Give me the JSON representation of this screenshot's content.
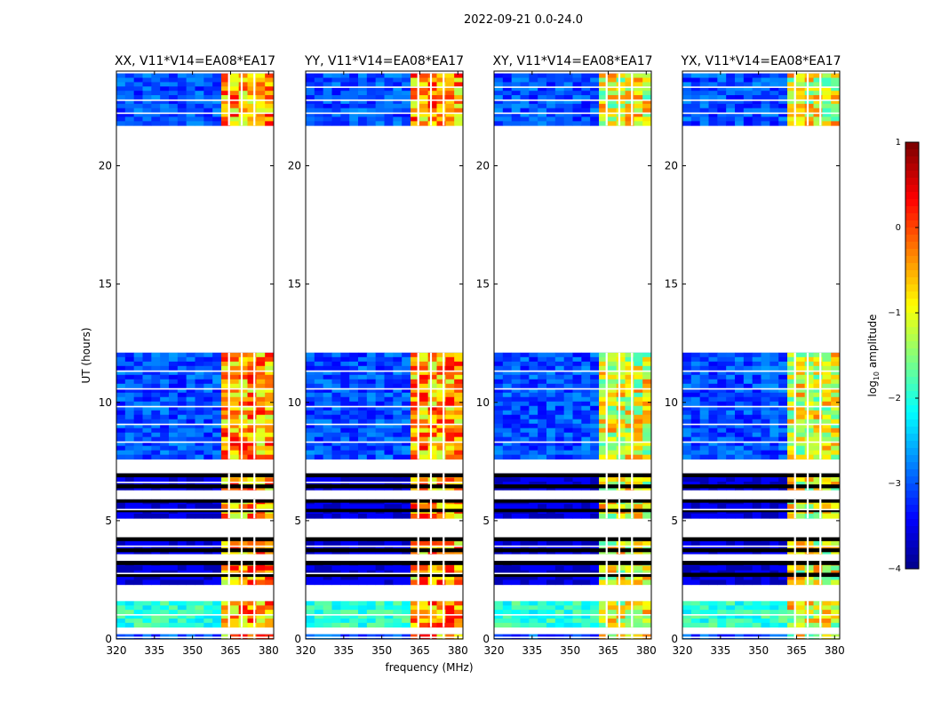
{
  "chart_data": {
    "type": "heatmap",
    "suptitle": "2022-09-21 0.0-24.0",
    "shared_xlabel": "frequency (MHz)",
    "shared_ylabel": "UT (hours)",
    "xlim": [
      320,
      382
    ],
    "ylim": [
      0,
      24
    ],
    "xticks": [
      320,
      335,
      350,
      365,
      380
    ],
    "yticks": [
      0,
      5,
      10,
      15,
      20
    ],
    "panels": [
      {
        "title": "XX, V11*V14=EA08*EA17"
      },
      {
        "title": "YY, V11*V14=EA08*EA17"
      },
      {
        "title": "XY, V11*V14=EA08*EA17"
      },
      {
        "title": "YX, V11*V14=EA08*EA17"
      }
    ],
    "colorbar": {
      "label_prefix": "log",
      "label_sub": "10",
      "label_suffix": " amplitude",
      "range": [
        -4,
        1
      ],
      "ticks": [
        1,
        0,
        -1,
        -2,
        -3,
        -4
      ],
      "colormap": "jet"
    },
    "data_blocks_hours": [
      [
        21.7,
        23.9
      ],
      [
        7.6,
        12.1
      ],
      [
        6.3,
        7.0
      ],
      [
        5.1,
        5.9
      ],
      [
        3.6,
        4.3
      ],
      [
        2.3,
        3.3
      ],
      [
        0.5,
        1.6
      ],
      [
        0.0,
        0.2
      ]
    ],
    "band_mhz": [
      359,
      379
    ],
    "channel_gaps_mhz": [
      364,
      369,
      374
    ]
  }
}
